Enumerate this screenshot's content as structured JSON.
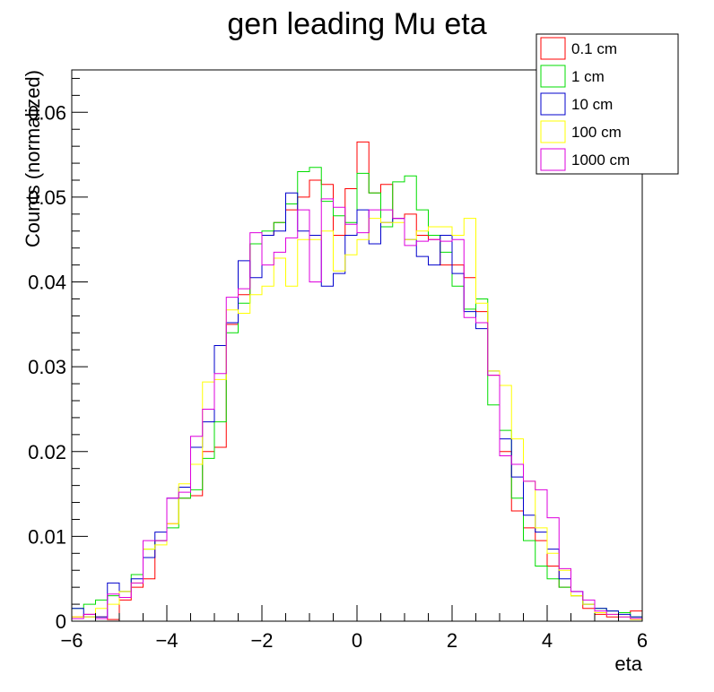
{
  "chart_data": {
    "type": "histogram",
    "title": "gen leading Mu eta",
    "xlabel": "eta",
    "ylabel": "Counts (normalized)",
    "xlim": [
      -6,
      6
    ],
    "ylim": [
      0,
      0.065
    ],
    "x_ticks": [
      "−6",
      "−4",
      "−2",
      "0",
      "2",
      "4",
      "6"
    ],
    "y_ticks": [
      "0",
      "0.01",
      "0.02",
      "0.03",
      "0.04",
      "0.05",
      "0.06"
    ],
    "y_tick_values": [
      0,
      0.01,
      0.02,
      0.03,
      0.04,
      0.05,
      0.06
    ],
    "x_tick_values": [
      -6,
      -4,
      -2,
      0,
      2,
      4,
      6
    ],
    "bins": 48,
    "grid": false,
    "legend_position": "top-right",
    "series": [
      {
        "name": "0.1 cm",
        "color": "#ff0000",
        "values": [
          0.0005,
          0.0008,
          0.0005,
          0.0002,
          0.0025,
          0.004,
          0.005,
          0.0095,
          0.0115,
          0.0145,
          0.0148,
          0.02,
          0.0205,
          0.035,
          0.0385,
          0.0445,
          0.0455,
          0.047,
          0.0485,
          0.05,
          0.052,
          0.0515,
          0.0455,
          0.051,
          0.0565,
          0.0505,
          0.0515,
          0.0475,
          0.048,
          0.0455,
          0.045,
          0.042,
          0.042,
          0.0405,
          0.0365,
          0.029,
          0.02,
          0.013,
          0.011,
          0.0095,
          0.0065,
          0.004,
          0.003,
          0.0015,
          0.0008,
          0.0005,
          0.001,
          0.0012
        ]
      },
      {
        "name": "1 cm",
        "color": "#00dd00",
        "values": [
          0.0015,
          0.002,
          0.0025,
          0.003,
          0.0035,
          0.0055,
          0.0085,
          0.0095,
          0.011,
          0.0145,
          0.0155,
          0.0192,
          0.0235,
          0.034,
          0.0375,
          0.0445,
          0.046,
          0.047,
          0.0492,
          0.053,
          0.0535,
          0.0495,
          0.0478,
          0.047,
          0.0528,
          0.0505,
          0.0465,
          0.0518,
          0.0525,
          0.0485,
          0.0455,
          0.0435,
          0.0395,
          0.0368,
          0.038,
          0.0255,
          0.0225,
          0.0145,
          0.0095,
          0.0065,
          0.005,
          0.004,
          0.003,
          0.002,
          0.0015,
          0.0012,
          0.001,
          0.0005
        ]
      },
      {
        "name": "10 cm",
        "color": "#0000cc",
        "values": [
          0.0015,
          0.0005,
          0.0005,
          0.0045,
          0.0035,
          0.005,
          0.0075,
          0.0105,
          0.0145,
          0.0158,
          0.0205,
          0.0235,
          0.0325,
          0.0352,
          0.0425,
          0.0405,
          0.0455,
          0.046,
          0.0505,
          0.046,
          0.0455,
          0.0395,
          0.041,
          0.0455,
          0.0485,
          0.0445,
          0.047,
          0.0475,
          0.045,
          0.043,
          0.042,
          0.0455,
          0.041,
          0.0365,
          0.0345,
          0.0295,
          0.0215,
          0.017,
          0.0125,
          0.0105,
          0.0085,
          0.005,
          0.0035,
          0.002,
          0.0015,
          0.0012,
          0.0008,
          0.0005
        ]
      },
      {
        "name": "100 cm",
        "color": "#ffff00",
        "values": [
          0.0005,
          0.0005,
          0.0015,
          0.002,
          0.0035,
          0.0045,
          0.0085,
          0.009,
          0.0115,
          0.0162,
          0.0185,
          0.0282,
          0.0285,
          0.0367,
          0.0363,
          0.0385,
          0.0395,
          0.0428,
          0.0395,
          0.045,
          0.045,
          0.046,
          0.0413,
          0.0432,
          0.045,
          0.0475,
          0.047,
          0.047,
          0.045,
          0.046,
          0.0465,
          0.0465,
          0.0455,
          0.0475,
          0.0375,
          0.0295,
          0.0278,
          0.0215,
          0.0165,
          0.011,
          0.008,
          0.006,
          0.003,
          0.002,
          0.001,
          0.0008,
          0.0005,
          0.0002
        ]
      },
      {
        "name": "1000 cm",
        "color": "#dd00dd",
        "values": [
          0.0003,
          0.0008,
          0.0003,
          0.0032,
          0.0028,
          0.0045,
          0.0095,
          0.0095,
          0.0145,
          0.0152,
          0.0218,
          0.025,
          0.0292,
          0.0382,
          0.0392,
          0.0458,
          0.042,
          0.0435,
          0.0452,
          0.0485,
          0.04,
          0.0498,
          0.0488,
          0.0468,
          0.0458,
          0.0485,
          0.0485,
          0.0475,
          0.0443,
          0.0448,
          0.045,
          0.0448,
          0.045,
          0.0358,
          0.0352,
          0.029,
          0.0195,
          0.0185,
          0.0165,
          0.0155,
          0.0122,
          0.0062,
          0.0035,
          0.0025,
          0.0012,
          0.0008,
          0.0005,
          0.0003
        ]
      }
    ]
  }
}
